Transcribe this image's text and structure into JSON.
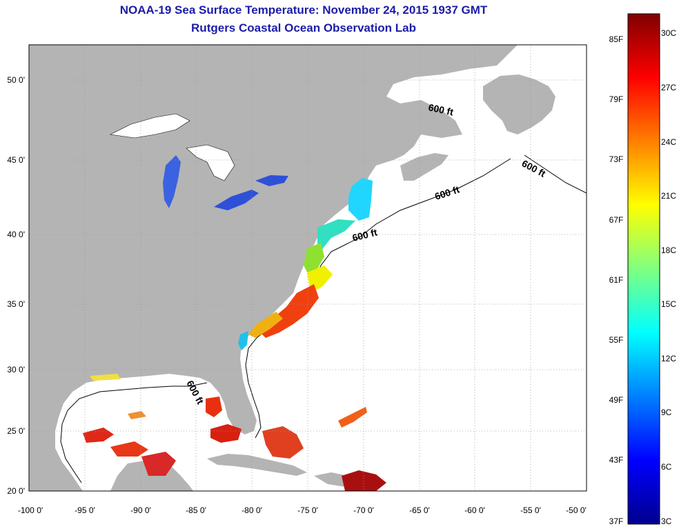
{
  "title": "NOAA-19 Sea Surface Temperature:  November 24, 2015 1937 GMT",
  "subtitle": "Rutgers Coastal Ocean Observation Lab",
  "map": {
    "lon_range": [
      -100,
      -50
    ],
    "lat_range": [
      20,
      52
    ],
    "x_ticks": [
      "-100 0'",
      "-95 0'",
      "-90 0'",
      "-85 0'",
      "-80 0'",
      "-75 0'",
      "-70 0'",
      "-65 0'",
      "-60 0'",
      "-55 0'",
      "-50 0'"
    ],
    "y_ticks": [
      "50 0'",
      "45 0'",
      "40 0'",
      "35 0'",
      "30 0'",
      "25 0'",
      "20 0'"
    ],
    "contour_label": "600 ft",
    "land_color": "#b4b4b4",
    "water_color": "#ffffff"
  },
  "colorbar": {
    "f_labels": [
      "85F",
      "79F",
      "73F",
      "67F",
      "61F",
      "55F",
      "49F",
      "43F",
      "37F"
    ],
    "c_labels": [
      "30C",
      "27C",
      "24C",
      "21C",
      "18C",
      "15C",
      "12C",
      "9C",
      "6C",
      "3C"
    ],
    "colormap": "jet"
  }
}
